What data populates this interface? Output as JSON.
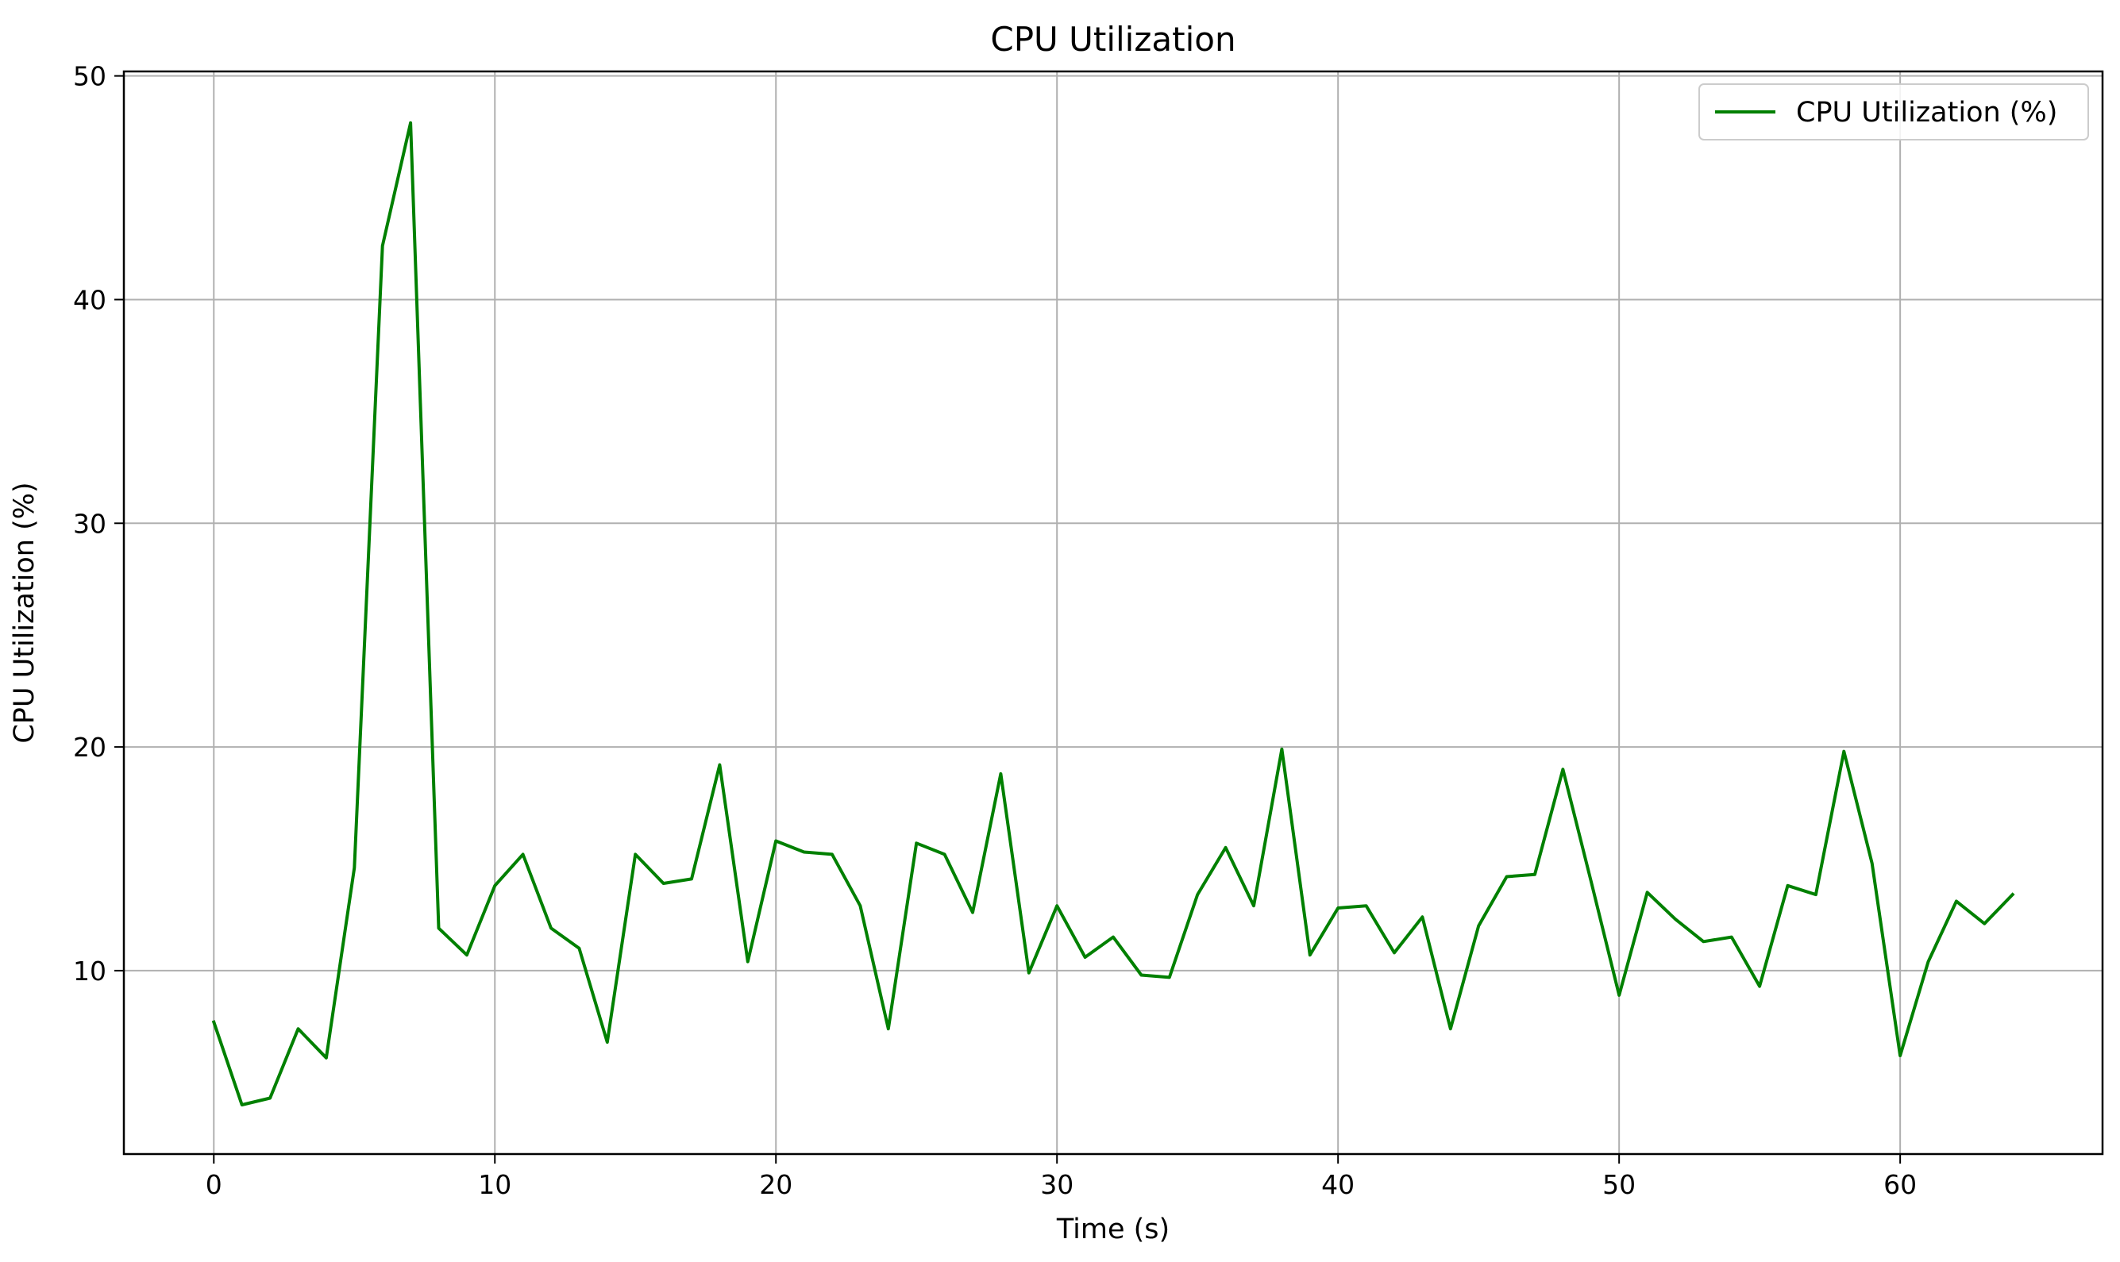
{
  "chart_data": {
    "type": "line",
    "title": "CPU Utilization",
    "xlabel": "Time (s)",
    "ylabel": "CPU Utilization (%)",
    "xlim": [
      -3.2,
      67.2
    ],
    "ylim": [
      1.8,
      50.2
    ],
    "xticks": [
      0,
      10,
      20,
      30,
      40,
      50,
      60
    ],
    "yticks": [
      10,
      20,
      30,
      40,
      50
    ],
    "grid": true,
    "legend_position": "top-right",
    "series": [
      {
        "name": "CPU Utilization (%)",
        "color": "#008000",
        "x": [
          0,
          1,
          2,
          3,
          4,
          5,
          6,
          7,
          8,
          9,
          10,
          11,
          12,
          13,
          14,
          15,
          16,
          17,
          18,
          19,
          20,
          21,
          22,
          23,
          24,
          25,
          26,
          27,
          28,
          29,
          30,
          31,
          32,
          33,
          34,
          35,
          36,
          37,
          38,
          39,
          40,
          41,
          42,
          43,
          44,
          45,
          46,
          47,
          48,
          49,
          50,
          51,
          52,
          53,
          54,
          55,
          56,
          57,
          58,
          59,
          60,
          61,
          62,
          63,
          64
        ],
        "values": [
          7.7,
          4.0,
          4.3,
          7.4,
          6.1,
          14.6,
          42.4,
          47.9,
          11.9,
          10.7,
          13.8,
          15.2,
          11.9,
          11.0,
          6.8,
          15.2,
          13.9,
          14.1,
          19.2,
          10.4,
          15.8,
          15.3,
          15.2,
          12.9,
          7.4,
          15.7,
          15.2,
          12.6,
          18.8,
          9.9,
          12.9,
          10.6,
          11.5,
          9.8,
          9.7,
          13.4,
          15.5,
          12.9,
          19.9,
          10.7,
          12.8,
          12.9,
          10.8,
          12.4,
          7.4,
          12.0,
          14.2,
          14.3,
          19.0,
          14.0,
          8.9,
          13.5,
          12.3,
          11.3,
          11.5,
          9.3,
          13.8,
          13.4,
          19.8,
          14.8,
          6.2,
          10.4,
          13.1,
          12.1,
          13.4
        ]
      }
    ]
  }
}
